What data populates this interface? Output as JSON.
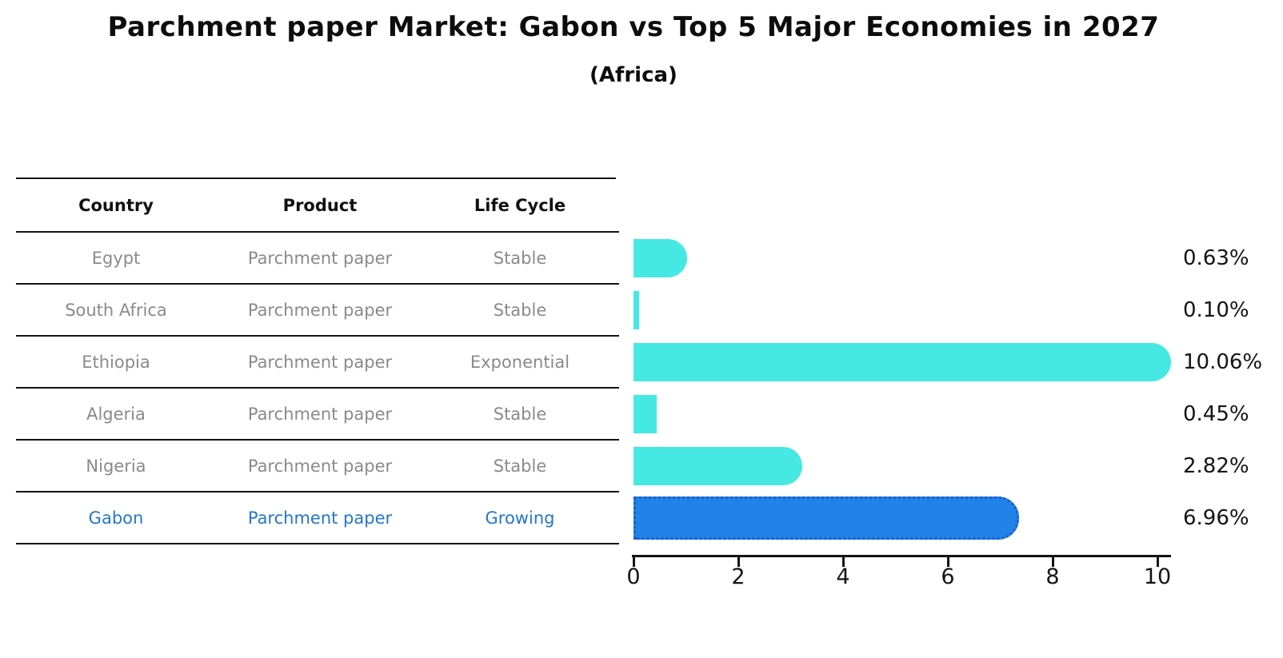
{
  "title": "Parchment paper Market: Gabon vs Top 5 Major Economies in 2027",
  "subtitle": "(Africa)",
  "table": {
    "headers": [
      "Country",
      "Product",
      "Life Cycle"
    ],
    "rows": [
      {
        "country": "Egypt",
        "product": "Parchment paper",
        "life_cycle": "Stable"
      },
      {
        "country": "South Africa",
        "product": "Parchment paper",
        "life_cycle": "Stable"
      },
      {
        "country": "Ethiopia",
        "product": "Parchment paper",
        "life_cycle": "Exponential"
      },
      {
        "country": "Algeria",
        "product": "Parchment paper",
        "life_cycle": "Stable"
      },
      {
        "country": "Nigeria",
        "product": "Parchment paper",
        "life_cycle": "Stable"
      },
      {
        "country": "Gabon",
        "product": "Parchment paper",
        "life_cycle": "Growing"
      }
    ]
  },
  "chart_data": {
    "type": "bar",
    "orientation": "horizontal",
    "categories": [
      "Egypt",
      "South Africa",
      "Ethiopia",
      "Algeria",
      "Nigeria",
      "Gabon"
    ],
    "values": [
      0.63,
      0.1,
      10.06,
      0.45,
      2.82,
      6.96
    ],
    "value_labels": [
      "0.63%",
      "0.10%",
      "10.06%",
      "0.45%",
      "2.82%",
      "6.96%"
    ],
    "x_ticks": [
      "0",
      "2",
      "4",
      "6",
      "8",
      "10"
    ],
    "xlim": [
      0,
      10.5
    ],
    "grid": false,
    "bar_color": "#46E8E4",
    "highlight_index": 5,
    "highlight_color": "#2183E8",
    "highlight_border_color": "#1A5FC8"
  },
  "colors": {
    "row_text": "#8A8A8A",
    "header_text": "#111111",
    "highlight_text": "#2277CC",
    "axis": "#141414"
  }
}
